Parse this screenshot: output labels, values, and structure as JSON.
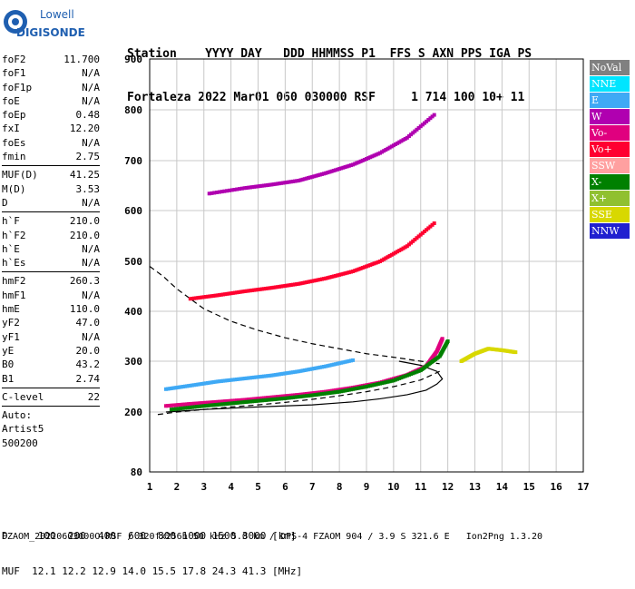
{
  "logo": {
    "line1": "Lowell",
    "line2": "DIGISONDE"
  },
  "header": {
    "row1": "Station    YYYY DAY   DDD HHMMSS P1  FFS S AXN PPS IGA PS",
    "row2": "Fortaleza 2022 Mar01 060 030000 RSF     1 714 100 10+ 11"
  },
  "params": {
    "group1": [
      {
        "name": "foF2",
        "value": "11.700"
      },
      {
        "name": "foF1",
        "value": "N/A"
      },
      {
        "name": "foF1p",
        "value": "N/A"
      },
      {
        "name": "foE",
        "value": "N/A"
      },
      {
        "name": "foEp",
        "value": "0.48"
      },
      {
        "name": "fxI",
        "value": "12.20"
      },
      {
        "name": "foEs",
        "value": "N/A"
      },
      {
        "name": "fmin",
        "value": "2.75"
      }
    ],
    "group2": [
      {
        "name": "MUF(D)",
        "value": "41.25"
      },
      {
        "name": "M(D)",
        "value": "3.53"
      },
      {
        "name": "D",
        "value": "N/A"
      }
    ],
    "group3": [
      {
        "name": "h`F",
        "value": "210.0"
      },
      {
        "name": "h`F2",
        "value": "210.0"
      },
      {
        "name": "h`E",
        "value": "N/A"
      },
      {
        "name": "h`Es",
        "value": "N/A"
      }
    ],
    "group4": [
      {
        "name": "hmF2",
        "value": "260.3"
      },
      {
        "name": "hmF1",
        "value": "N/A"
      },
      {
        "name": "hmE",
        "value": "110.0"
      },
      {
        "name": "yF2",
        "value": "47.0"
      },
      {
        "name": "yF1",
        "value": "N/A"
      },
      {
        "name": "yE",
        "value": "20.0"
      },
      {
        "name": "B0",
        "value": "43.2"
      },
      {
        "name": "B1",
        "value": "2.74"
      }
    ],
    "group5": [
      {
        "name": "C-level",
        "value": "22"
      }
    ],
    "auto": [
      "Auto:",
      "Artist5",
      "500200"
    ]
  },
  "legend": [
    {
      "label": "NoVal",
      "color": "#808080"
    },
    {
      "label": "NNE",
      "color": "#00e5ff"
    },
    {
      "label": "E",
      "color": "#3fa9f5"
    },
    {
      "label": "W",
      "color": "#b000b0"
    },
    {
      "label": "Vo-",
      "color": "#e0007f"
    },
    {
      "label": "Vo+",
      "color": "#ff0030"
    },
    {
      "label": "SSW",
      "color": "#ffa0a0"
    },
    {
      "label": "X-",
      "color": "#008000"
    },
    {
      "label": "X+",
      "color": "#90c030"
    },
    {
      "label": "SSE",
      "color": "#d8d800"
    },
    {
      "label": "NNW",
      "color": "#2020d0"
    }
  ],
  "bottom": {
    "line1": "D     100  200  400  600  800 1000 1500 3000 [km]",
    "line2": "MUF  12.1 12.2 12.9 14.0 15.5 17.8 24.3 41.3 [MHz]"
  },
  "footer": "FZAOM_20220603000O.RSF / 320fx256h 50 kHz 5.0 km / DPS-4 FZAOM 904 / 3.9 S 321.6 E   Ion2Png 1.3.20",
  "chart_data": {
    "type": "scatter",
    "title": "",
    "xlabel": "",
    "ylabel": "",
    "xlim": [
      1,
      17
    ],
    "ylim": [
      80,
      900
    ],
    "xticks": [
      1,
      2,
      3,
      4,
      5,
      6,
      7,
      8,
      9,
      10,
      11,
      12,
      13,
      14,
      15,
      16,
      17
    ],
    "yticks": [
      80,
      200,
      300,
      400,
      500,
      600,
      700,
      800,
      900
    ],
    "grid": true,
    "y_axis_note": "nonlinear height axis",
    "series": [
      {
        "name": "Vo-",
        "color": "#e0007f",
        "x": [
          1.6,
          2.5,
          3.5,
          4.5,
          5.5,
          6.5,
          7.5,
          8.5,
          9.5,
          10.5,
          11.2,
          11.6,
          11.8
        ],
        "y": [
          212,
          216,
          220,
          224,
          229,
          234,
          240,
          248,
          258,
          273,
          290,
          320,
          345
        ]
      },
      {
        "name": "X-",
        "color": "#008000",
        "x": [
          1.8,
          3,
          4,
          5,
          6,
          7,
          8,
          9,
          10,
          11,
          11.7,
          12.0
        ],
        "y": [
          205,
          212,
          217,
          222,
          227,
          233,
          240,
          250,
          262,
          282,
          310,
          340
        ]
      },
      {
        "name": "E",
        "color": "#3fa9f5",
        "x": [
          1.6,
          2.5,
          3.5,
          4.5,
          5.5,
          6.5,
          7.5,
          8.5
        ],
        "y": [
          245,
          252,
          260,
          266,
          272,
          280,
          290,
          302
        ]
      },
      {
        "name": "Vo+",
        "color": "#ff0030",
        "x": [
          2.5,
          3.5,
          4.5,
          5.5,
          6.5,
          7.5,
          8.5,
          9.5,
          10.5,
          11.5
        ],
        "y": [
          425,
          432,
          440,
          447,
          455,
          466,
          480,
          500,
          530,
          575
        ]
      },
      {
        "name": "W",
        "color": "#b000b0",
        "x": [
          3.2,
          4.5,
          5.5,
          6.5,
          7.5,
          8.5,
          9.5,
          10.5,
          11.5
        ],
        "y": [
          634,
          645,
          652,
          660,
          675,
          692,
          715,
          745,
          790
        ]
      },
      {
        "name": "SSE",
        "color": "#d8d800",
        "x": [
          12.5,
          13,
          13.5,
          14,
          14.5
        ],
        "y": [
          300,
          315,
          325,
          322,
          318
        ]
      }
    ],
    "curves": [
      {
        "name": "profile",
        "style": "solid",
        "x": [
          1.6,
          3,
          5,
          7,
          8.5,
          9.5,
          10.5,
          11.2,
          11.6,
          11.8,
          11.6,
          11.0,
          10.2
        ],
        "y": [
          200,
          205,
          210,
          214,
          220,
          226,
          234,
          243,
          255,
          265,
          280,
          292,
          300
        ]
      },
      {
        "name": "MUF",
        "style": "dashed",
        "x": [
          1,
          1.5,
          2,
          2.5,
          3,
          4,
          5,
          6,
          7,
          8,
          9,
          10,
          11,
          11.7
        ],
        "y": [
          490,
          470,
          445,
          425,
          405,
          380,
          362,
          347,
          335,
          325,
          315,
          308,
          300,
          295
        ]
      },
      {
        "name": "lower",
        "style": "dashed",
        "x": [
          1.3,
          2,
          3,
          4,
          5,
          6,
          7,
          8,
          9,
          10,
          11,
          11.7
        ],
        "y": [
          195,
          200,
          205,
          210,
          214,
          219,
          225,
          232,
          240,
          250,
          263,
          280
        ]
      }
    ]
  }
}
